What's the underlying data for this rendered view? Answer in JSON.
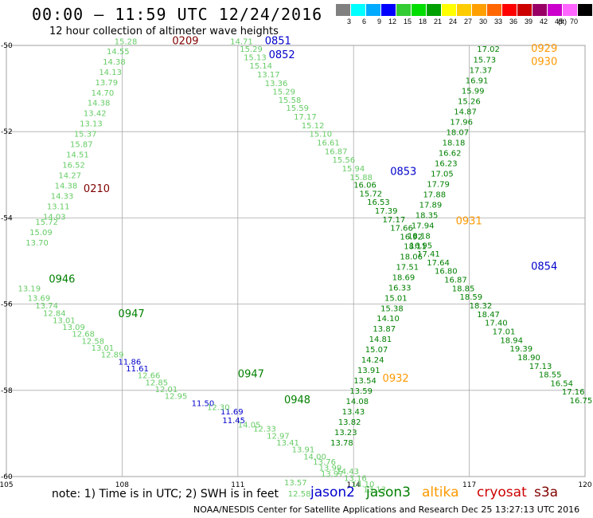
{
  "header": {
    "title": "00:00 — 11:59 UTC 12/24/2016",
    "subtitle": "12 hour collection of altimeter wave heights"
  },
  "legend": {
    "colors": [
      "#808080",
      "#00ffff",
      "#00aaff",
      "#0000ff",
      "#33cc33",
      "#00dd00",
      "#00a000",
      "#ffff00",
      "#ffcc00",
      "#ffa000",
      "#ff6600",
      "#ff0000",
      "#cc0000",
      "#990066",
      "#cc00cc",
      "#ff66ff",
      "#000000"
    ],
    "ticks": [
      "3",
      "6",
      "9",
      "12",
      "15",
      "18",
      "21",
      "24",
      "27",
      "30",
      "33",
      "36",
      "39",
      "42",
      "45",
      "70"
    ],
    "unit": "(ft)"
  },
  "map": {
    "lon_range": [
      105,
      120
    ],
    "lat_range": [
      -60,
      -50
    ],
    "lon_ticks": [
      "105",
      "108",
      "111",
      "114",
      "117",
      "120"
    ],
    "lat_ticks": [
      "-50",
      "-52",
      "-54",
      "-56",
      "-58",
      "-60"
    ],
    "passes": [
      {
        "label": "0209",
        "color": "#800000",
        "lon": 109.3,
        "lat": -49.97
      },
      {
        "label": "0210",
        "color": "#800000",
        "lon": 107.0,
        "lat": -53.4
      },
      {
        "label": "0851",
        "color": "#0000cc",
        "lon": 111.7,
        "lat": -49.97
      },
      {
        "label": "0852",
        "color": "#0000cc",
        "lon": 111.8,
        "lat": -50.3
      },
      {
        "label": "0853",
        "color": "#0000cc",
        "lon": 114.95,
        "lat": -53.0
      },
      {
        "label": "0854",
        "color": "#0000cc",
        "lon": 118.6,
        "lat": -55.2
      },
      {
        "label": "0946",
        "color": "#008000",
        "lon": 106.1,
        "lat": -55.5
      },
      {
        "label": "0947",
        "color": "#008000",
        "lon": 107.9,
        "lat": -56.3
      },
      {
        "label": "0947",
        "color": "#008000",
        "lon": 111.0,
        "lat": -57.7
      },
      {
        "label": "0948",
        "color": "#008000",
        "lon": 112.2,
        "lat": -58.3
      },
      {
        "label": "0929",
        "color": "#ff9900",
        "lon": 118.6,
        "lat": -50.15
      },
      {
        "label": "0930",
        "color": "#ff9900",
        "lon": 118.6,
        "lat": -50.45
      },
      {
        "label": "0931",
        "color": "#ff9900",
        "lon": 116.65,
        "lat": -54.15
      },
      {
        "label": "0932",
        "color": "#ff9900",
        "lon": 114.75,
        "lat": -57.8
      }
    ],
    "tracks": [
      {
        "color": "#66cc66",
        "points": [
          [
            "15.28",
            107.8,
            -49.97
          ],
          [
            "14.55",
            107.6,
            -50.2
          ],
          [
            "14.38",
            107.5,
            -50.44
          ],
          [
            "14.13",
            107.4,
            -50.68
          ],
          [
            "13.79",
            107.3,
            -50.92
          ],
          [
            "14.70",
            107.2,
            -51.16
          ],
          [
            "14.38",
            107.1,
            -51.4
          ],
          [
            "13.42",
            107.0,
            -51.64
          ],
          [
            "13.13",
            106.9,
            -51.88
          ],
          [
            "15.37",
            106.75,
            -52.12
          ],
          [
            "15.87",
            106.65,
            -52.36
          ],
          [
            "14.51",
            106.55,
            -52.6
          ],
          [
            "16.52",
            106.45,
            -52.84
          ],
          [
            "14.27",
            106.35,
            -53.08
          ],
          [
            "14.38",
            106.25,
            -53.32
          ],
          [
            "14.33",
            106.15,
            -53.56
          ],
          [
            "13.11",
            106.05,
            -53.8
          ],
          [
            "14.03",
            105.95,
            -54.04
          ],
          [
            "15.72",
            105.75,
            -54.16
          ],
          [
            "15.09",
            105.6,
            -54.4
          ],
          [
            "13.70",
            105.5,
            -54.64
          ]
        ]
      },
      {
        "color": "#66cc66",
        "points": [
          [
            "14.71",
            110.8,
            -49.97
          ],
          [
            "15.29",
            111.05,
            -50.15
          ],
          [
            "15.13",
            111.15,
            -50.34
          ],
          [
            "15.14",
            111.3,
            -50.54
          ],
          [
            "13.17",
            111.5,
            -50.74
          ],
          [
            "13.36",
            111.7,
            -50.94
          ],
          [
            "15.29",
            111.9,
            -51.14
          ],
          [
            "15.58",
            112.05,
            -51.33
          ],
          [
            "15.59",
            112.25,
            -51.52
          ],
          [
            "17.17",
            112.45,
            -51.72
          ],
          [
            "15.12",
            112.65,
            -51.92
          ],
          [
            "15.10",
            112.85,
            -52.12
          ],
          [
            "16.61",
            113.05,
            -52.32
          ],
          [
            "16.87",
            113.25,
            -52.52
          ],
          [
            "15.56",
            113.45,
            -52.72
          ],
          [
            "15.94",
            113.7,
            -52.92
          ],
          [
            "15.88",
            113.9,
            -53.12
          ]
        ]
      },
      {
        "color": "#008000",
        "points": [
          [
            "16.06",
            114.0,
            -53.3
          ],
          [
            "15.72",
            114.15,
            -53.5
          ],
          [
            "16.53",
            114.35,
            -53.7
          ],
          [
            "17.39",
            114.55,
            -53.9
          ],
          [
            "17.17",
            114.75,
            -54.1
          ],
          [
            "17.66",
            114.95,
            -54.3
          ],
          [
            "16.92",
            115.2,
            -54.5
          ],
          [
            "16.95",
            115.45,
            -54.7
          ],
          [
            "17.41",
            115.65,
            -54.9
          ],
          [
            "17.64",
            115.9,
            -55.1
          ],
          [
            "16.80",
            116.1,
            -55.3
          ],
          [
            "16.87",
            116.35,
            -55.5
          ],
          [
            "18.85",
            116.55,
            -55.7
          ],
          [
            "18.59",
            116.75,
            -55.9
          ],
          [
            "18.32",
            117.0,
            -56.1
          ],
          [
            "18.47",
            117.2,
            -56.3
          ],
          [
            "17.40",
            117.4,
            -56.5
          ],
          [
            "17.01",
            117.6,
            -56.7
          ],
          [
            "18.94",
            117.8,
            -56.9
          ],
          [
            "19.39",
            118.05,
            -57.1
          ],
          [
            "18.90",
            118.25,
            -57.3
          ],
          [
            "17.13",
            118.55,
            -57.5
          ],
          [
            "18.55",
            118.8,
            -57.7
          ],
          [
            "16.54",
            119.1,
            -57.9
          ],
          [
            "17.16",
            119.4,
            -58.1
          ],
          [
            "16.75",
            119.6,
            -58.3
          ]
        ]
      },
      {
        "color": "#008000",
        "points": [
          [
            "17.02",
            117.2,
            -50.15
          ],
          [
            "15.73",
            117.1,
            -50.4
          ],
          [
            "17.37",
            117.0,
            -50.64
          ],
          [
            "16.91",
            116.9,
            -50.88
          ],
          [
            "15.99",
            116.8,
            -51.12
          ],
          [
            "15.26",
            116.7,
            -51.36
          ],
          [
            "14.87",
            116.6,
            -51.6
          ],
          [
            "17.96",
            116.5,
            -51.84
          ],
          [
            "18.07",
            116.4,
            -52.08
          ],
          [
            "18.18",
            116.3,
            -52.32
          ],
          [
            "16.62",
            116.2,
            -52.56
          ],
          [
            "16.23",
            116.1,
            -52.8
          ],
          [
            "17.05",
            116.0,
            -53.04
          ],
          [
            "17.79",
            115.9,
            -53.28
          ],
          [
            "17.88",
            115.8,
            -53.52
          ],
          [
            "17.89",
            115.7,
            -53.76
          ],
          [
            "18.35",
            115.6,
            -54.0
          ],
          [
            "17.94",
            115.5,
            -54.24
          ],
          [
            "18.18",
            115.4,
            -54.48
          ],
          [
            "18.11",
            115.3,
            -54.72
          ],
          [
            "18.06",
            115.2,
            -54.96
          ],
          [
            "17.51",
            115.1,
            -55.2
          ],
          [
            "18.69",
            115.0,
            -55.44
          ],
          [
            "16.33",
            114.9,
            -55.68
          ],
          [
            "15.01",
            114.8,
            -55.92
          ],
          [
            "15.38",
            114.7,
            -56.16
          ],
          [
            "14.10",
            114.6,
            -56.4
          ],
          [
            "13.87",
            114.5,
            -56.64
          ],
          [
            "14.81",
            114.4,
            -56.88
          ],
          [
            "15.07",
            114.3,
            -57.12
          ],
          [
            "14.24",
            114.2,
            -57.36
          ],
          [
            "13.91",
            114.1,
            -57.6
          ],
          [
            "13.54",
            114.0,
            -57.84
          ],
          [
            "13.59",
            113.9,
            -58.08
          ],
          [
            "14.08",
            113.8,
            -58.32
          ],
          [
            "13.43",
            113.7,
            -58.56
          ],
          [
            "13.82",
            113.6,
            -58.8
          ],
          [
            "13.23",
            113.5,
            -59.04
          ],
          [
            "13.78",
            113.4,
            -59.28
          ]
        ]
      },
      {
        "color": "#66cc66",
        "points": [
          [
            "13.19",
            105.3,
            -55.7
          ],
          [
            "13.69",
            105.55,
            -55.92
          ],
          [
            "13.74",
            105.75,
            -56.1
          ],
          [
            "12.84",
            105.95,
            -56.28
          ],
          [
            "13.01",
            106.2,
            -56.44
          ],
          [
            "13.09",
            106.45,
            -56.6
          ],
          [
            "12.68",
            106.7,
            -56.76
          ],
          [
            "12.58",
            106.95,
            -56.92
          ],
          [
            "13.01",
            107.2,
            -57.08
          ],
          [
            "12.89",
            107.45,
            -57.24
          ]
        ]
      },
      {
        "color": "#0000cc",
        "points": [
          [
            "11.86",
            107.9,
            -57.4
          ],
          [
            "11.61",
            108.1,
            -57.56
          ]
        ]
      },
      {
        "color": "#66cc66",
        "points": [
          [
            "12.66",
            108.4,
            -57.72
          ],
          [
            "12.85",
            108.6,
            -57.88
          ],
          [
            "12.01",
            108.85,
            -58.04
          ],
          [
            "12.95",
            109.1,
            -58.2
          ]
        ]
      },
      {
        "color": "#0000cc",
        "points": [
          [
            "11.50",
            109.8,
            -58.36
          ],
          [
            "11.69",
            110.55,
            -58.56
          ],
          [
            "11.45",
            110.6,
            -58.76
          ]
        ]
      },
      {
        "color": "#66cc66",
        "points": [
          [
            "12.30",
            110.2,
            -58.46
          ],
          [
            "14.05",
            111.0,
            -58.86
          ],
          [
            "12.33",
            111.4,
            -58.96
          ],
          [
            "12.97",
            111.75,
            -59.12
          ],
          [
            "13.41",
            112.0,
            -59.28
          ],
          [
            "13.91",
            112.4,
            -59.44
          ],
          [
            "14.00",
            112.7,
            -59.6
          ],
          [
            "13.76",
            112.95,
            -59.72
          ],
          [
            "13.99",
            113.1,
            -59.86
          ],
          [
            "13.97",
            113.15,
            -60.0
          ]
        ]
      },
      {
        "color": "#66cc66",
        "points": [
          [
            "14.43",
            113.55,
            -59.94
          ],
          [
            "13.16",
            113.75,
            -60.1
          ],
          [
            "14.10",
            113.95,
            -60.24
          ],
          [
            "13.13",
            114.25,
            -60.36
          ]
        ]
      },
      {
        "color": "#66cc66",
        "points": [
          [
            "13.57",
            112.2,
            -60.2
          ],
          [
            "12.58",
            112.3,
            -60.46
          ]
        ]
      }
    ]
  },
  "footer": {
    "note": "note: 1) Time is in UTC; 2) SWH is in feet",
    "satellites": [
      {
        "name": "jason2",
        "color": "#0000cc"
      },
      {
        "name": "jason3",
        "color": "#008000"
      },
      {
        "name": "altika",
        "color": "#ff9900"
      },
      {
        "name": "cryosat",
        "color": "#cc0000"
      },
      {
        "name": "s3a",
        "color": "#800000"
      }
    ],
    "credit": "NOAA/NESDIS Center for Satellite Applications and Research     Dec 25 13:27:13 UTC 2016"
  }
}
